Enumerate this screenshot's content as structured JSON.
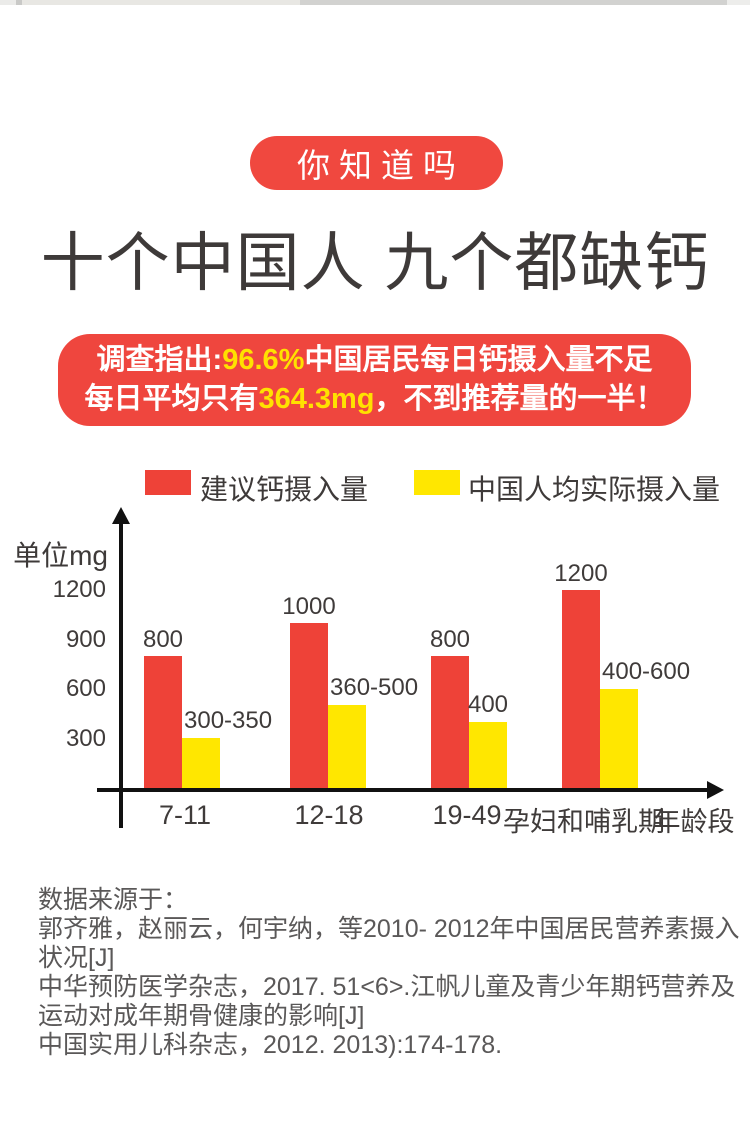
{
  "badge": {
    "label": "你知道吗"
  },
  "title": "十个中国人 九个都缺钙",
  "banner": {
    "line1_prefix": "调查指出:",
    "line1_highlight": "96.6%",
    "line1_suffix": "中国居民每日钙摄入量不足",
    "line2_prefix": "每日平均只有",
    "line2_highlight": "364.3mg",
    "line2_suffix": "，不到推荐量的一半！"
  },
  "legend": [
    {
      "label": "建议钙摄入量",
      "color": "#ee4238"
    },
    {
      "label": "中国人均实际摄入量",
      "color": "#ffe700"
    }
  ],
  "chart_data": {
    "type": "bar",
    "unit_label": "单位mg",
    "xlabel": "年龄段",
    "categories": [
      "7-11",
      "12-18",
      "19-49",
      "孕妇和哺乳期"
    ],
    "y_ticks": [
      300,
      600,
      900,
      1200
    ],
    "ylim": [
      0,
      1350
    ],
    "grid": false,
    "legend_position": "top",
    "series": [
      {
        "name": "建议钙摄入量",
        "color": "#ee4238",
        "values": [
          800,
          1000,
          800,
          1200
        ],
        "labels": [
          "800",
          "1000",
          "800",
          "1200"
        ]
      },
      {
        "name": "中国人均实际摄入量",
        "color": "#ffe700",
        "values": [
          300,
          500,
          400,
          600
        ],
        "labels": [
          "300-350",
          "360-500",
          "400",
          "400-600"
        ]
      }
    ]
  },
  "source": {
    "lines": [
      "数据来源于：",
      "郭齐雅，赵丽云，何宇纳，等2010- 2012年中国居民营养素摄入",
      "状况[J]",
      "中华预防医学杂志，2017. 51<6>.江帆儿童及青少年期钙营养及",
      "运动对成年期骨健康的影响[J]",
      "中国实用儿科杂志，2012. 2013):174-178."
    ]
  },
  "colors": {
    "accent_red": "#ef463e",
    "bar_red": "#ee4238",
    "bar_yellow": "#ffe700",
    "highlight_yellow": "#ffe100",
    "title_dark": "#3e3a39",
    "source_gray": "#5a5858"
  }
}
